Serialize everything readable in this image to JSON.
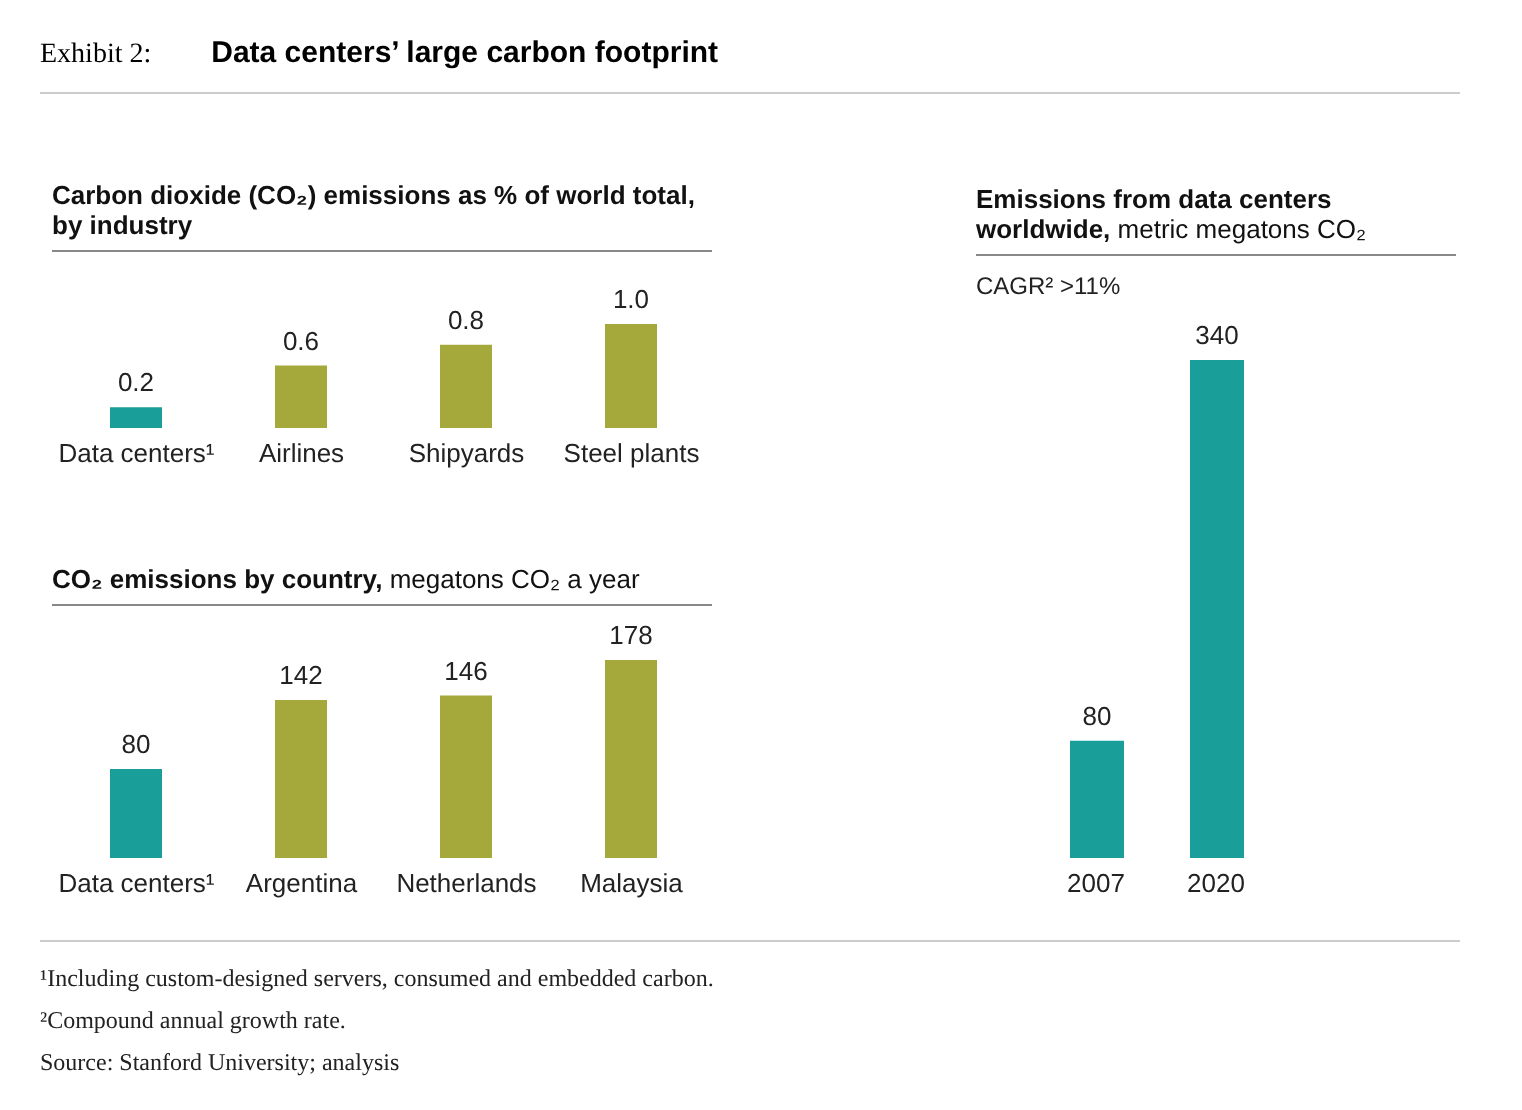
{
  "chart_data": [
    {
      "type": "bar",
      "title": "Carbon dioxide (CO₂) emissions as % of world total, by industry",
      "categories": [
        "Data centers¹",
        "Airlines",
        "Shipyards",
        "Steel plants"
      ],
      "values": [
        0.2,
        0.6,
        0.8,
        1.0
      ],
      "value_labels": [
        "0.2",
        "0.6",
        "0.8",
        "1.0"
      ],
      "colors": [
        "#1a9e9a",
        "#a5a83a",
        "#a5a83a",
        "#a5a83a"
      ],
      "annotations": [
        "Exhibit 2:",
        "Data centers’ large carbon footprint"
      ]
    },
    {
      "type": "bar",
      "title": "CO₂ emissions by country,",
      "subtitle": "megatons CO₂ a year",
      "categories": [
        "Data centers¹",
        "Argentina",
        "Netherlands",
        "Malaysia"
      ],
      "values": [
        80,
        142,
        146,
        178
      ],
      "data_labels": true,
      "colors": [
        "#1a9e9a",
        "#a5a83a",
        "#a5a83a",
        "#a5a83a"
      ]
    },
    {
      "type": "bar",
      "title": "Emissions from data centers worldwide,",
      "subtitle": "metric megatons CO₂",
      "categories": [
        "2007",
        "2020"
      ],
      "values": [
        80,
        340
      ],
      "data_labels": true,
      "color": "#1a9e9a",
      "annotations": [
        "CAGR² >11%",
        "¹Including custom-designed servers, consumed and embedded carbon.",
        "²Compound annual growth rate.",
        "Source: Stanford University; analysis"
      ]
    }
  ]
}
